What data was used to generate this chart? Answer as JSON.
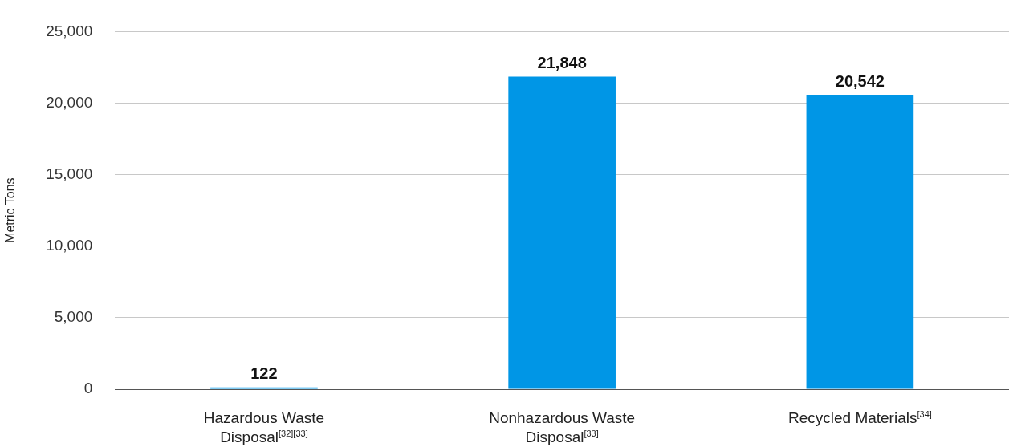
{
  "chart_data": {
    "type": "bar",
    "categories": [
      "Hazardous Waste Disposal$^{[32][33]}$",
      "Nonhazardous Waste Disposal$^{[33]}$",
      "Recycled Materials$^{[34]}$"
    ],
    "values": [
      122,
      21848,
      20542
    ],
    "color": "#0096e6",
    "ylabel": "Metric Tons",
    "value_labels": [
      "122",
      "21,848",
      "20,542"
    ],
    "ylim": [
      0,
      25000
    ],
    "yticks": [
      0,
      {
        "value": 5000,
        "label": "5,000"
      },
      {
        "value": 10000,
        "label": "10,000"
      },
      {
        "value": 15000,
        "label": "15,000"
      },
      {
        "value": 20000,
        "label": "20,000"
      },
      {
        "value": 25000,
        "label": "25,000"
      }
    ],
    "grid": "y",
    "legend": false
  }
}
